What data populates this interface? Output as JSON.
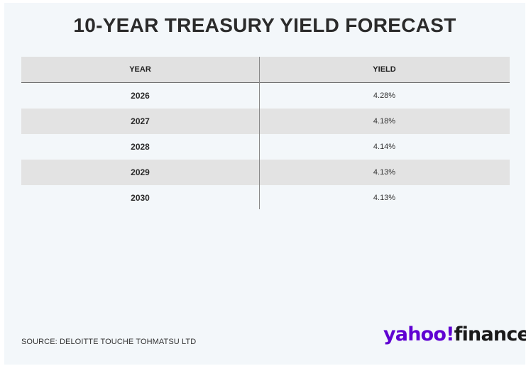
{
  "chart_data": {
    "type": "table",
    "title": "10-YEAR TREASURY YIELD FORECAST",
    "columns": [
      "YEAR",
      "YIELD"
    ],
    "rows": [
      {
        "year": "2026",
        "yield": "4.28%"
      },
      {
        "year": "2027",
        "yield": "4.18%"
      },
      {
        "year": "2028",
        "yield": "4.14%"
      },
      {
        "year": "2029",
        "yield": "4.13%"
      },
      {
        "year": "2030",
        "yield": "4.13%"
      }
    ],
    "values": [
      4.28,
      4.18,
      4.14,
      4.13,
      4.13
    ]
  },
  "footer": {
    "source": "SOURCE: DELOITTE TOUCHE TOHMATSU LTD",
    "logo_yahoo": "yahoo!",
    "logo_finance": "finance"
  },
  "colors": {
    "brand": "#6001d2",
    "background": "#f3f7fa",
    "stripe": "#e3e3e3"
  }
}
